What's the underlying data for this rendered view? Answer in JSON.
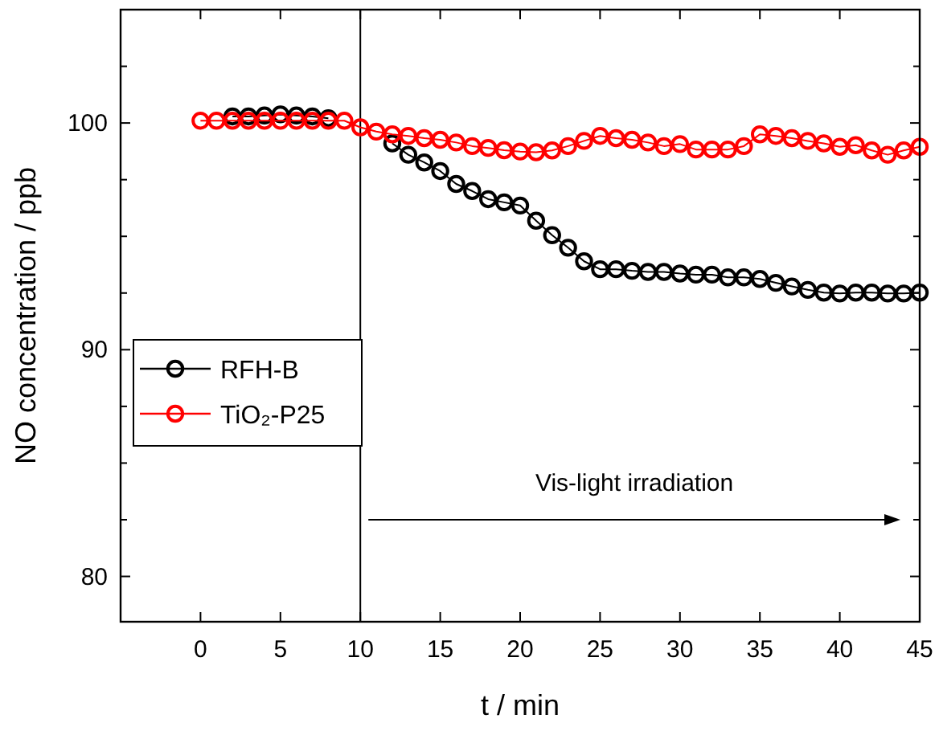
{
  "chart_data": {
    "type": "line",
    "xlabel": "t / min",
    "ylabel": "NO concentration / ppb",
    "x": [
      0,
      1,
      2,
      3,
      4,
      5,
      6,
      7,
      8,
      9,
      10,
      11,
      12,
      13,
      14,
      15,
      16,
      17,
      18,
      19,
      20,
      21,
      22,
      23,
      24,
      25,
      26,
      27,
      28,
      29,
      30,
      31,
      32,
      33,
      34,
      35,
      36,
      37,
      38,
      39,
      40,
      41,
      42,
      43,
      44,
      45
    ],
    "series": [
      {
        "name": "RFH-B",
        "color": "#000000",
        "values": [
          null,
          null,
          100.29,
          100.29,
          100.33,
          100.38,
          100.33,
          100.29,
          100.21,
          null,
          null,
          null,
          99.1,
          98.6,
          98.26,
          97.88,
          97.31,
          97.0,
          96.64,
          96.5,
          96.36,
          95.69,
          95.05,
          94.5,
          93.9,
          93.55,
          93.55,
          93.48,
          93.43,
          93.43,
          93.36,
          93.31,
          93.31,
          93.19,
          93.19,
          93.12,
          92.95,
          92.79,
          92.64,
          92.52,
          92.48,
          92.52,
          92.52,
          92.48,
          92.48,
          92.52
        ]
      },
      {
        "name": "TiO₂-P25",
        "color": "#ff0000",
        "values": [
          100.1,
          100.1,
          100.1,
          100.1,
          100.1,
          100.1,
          100.1,
          100.1,
          100.1,
          100.1,
          99.81,
          99.62,
          99.5,
          99.43,
          99.33,
          99.26,
          99.14,
          98.98,
          98.9,
          98.8,
          98.74,
          98.71,
          98.79,
          98.98,
          99.21,
          99.43,
          99.33,
          99.26,
          99.14,
          98.98,
          99.07,
          98.83,
          98.83,
          98.83,
          98.98,
          99.5,
          99.43,
          99.33,
          99.21,
          99.1,
          98.95,
          99.02,
          98.79,
          98.6,
          98.79,
          98.95
        ]
      }
    ],
    "xlim": [
      -5,
      45
    ],
    "xticks": [
      0,
      5,
      10,
      15,
      20,
      25,
      30,
      35,
      40,
      45
    ],
    "ylim": [
      78,
      105
    ],
    "yticks": [
      {
        "value": 80,
        "label": "80"
      },
      {
        "value": 82.5,
        "label": null
      },
      {
        "value": 85,
        "label": null
      },
      {
        "value": 87.5,
        "label": null
      },
      {
        "value": 90,
        "label": "90"
      },
      {
        "value": 92.5,
        "label": null
      },
      {
        "value": 95,
        "label": null
      },
      {
        "value": 97.5,
        "label": null
      },
      {
        "value": 100,
        "label": "100"
      },
      {
        "value": 102.5,
        "label": null
      }
    ],
    "ref_lines": [
      {
        "axis": "x",
        "value": 10,
        "color": "#000000"
      }
    ],
    "annotations": [
      "Vis-light irradiation"
    ],
    "marker": "circle",
    "line_style": "solid",
    "legend": "left",
    "grid": false
  }
}
